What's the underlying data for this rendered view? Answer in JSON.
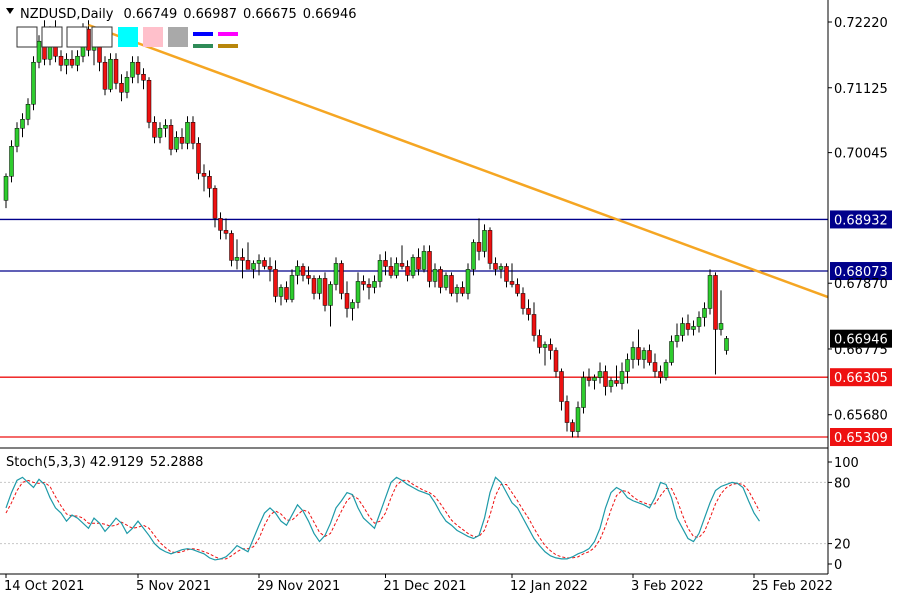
{
  "chart_data": [
    {
      "type": "candlestick",
      "symbol": "NZDUSD",
      "timeframe": "Daily",
      "ohlc_header": [
        "0.66749",
        "0.66987",
        "0.66675",
        "0.66946"
      ],
      "y_ticks": [
        "0.72220",
        "0.71125",
        "0.70045",
        "0.68932",
        "0.68073",
        "0.67870",
        "0.66946",
        "0.66775",
        "0.66305",
        "0.65680",
        "0.65309"
      ],
      "x_ticks": [
        "14 Oct 2021",
        "5 Nov 2021",
        "29 Nov 2021",
        "21 Dec 2021",
        "12 Jan 2022",
        "3 Feb 2022",
        "25 Feb 2022"
      ],
      "ylim": [
        0.652,
        0.724
      ],
      "up_color": "#2ecc2e",
      "down_color": "#ee1111",
      "levels": [
        {
          "value": 0.68932,
          "label": "0.68932",
          "color": "#00008b"
        },
        {
          "value": 0.68073,
          "label": "0.68073",
          "color": "#00008b"
        },
        {
          "value": 0.66305,
          "label": "0.66305",
          "color": "#ee1111"
        },
        {
          "value": 0.65309,
          "label": "0.65309",
          "color": "#ee1111"
        }
      ],
      "current_price": {
        "value": 0.66946,
        "label": "0.66946"
      },
      "trendline": {
        "color": "#f5a623",
        "points": [
          {
            "i": 15,
            "y": 0.7217
          },
          {
            "i": 142,
            "y": 0.6789
          }
        ]
      },
      "legend_swatches": [
        "#ffffff",
        "#ffffff",
        "#ffffff",
        "#ffffff",
        "#00ffff",
        "#ffc0cb",
        "#a9a9a9",
        "#0000ff",
        "#ff00ff",
        "#2e8b57",
        "#b8860b"
      ],
      "candles": [
        [
          0.6925,
          0.697,
          0.6912,
          0.6965
        ],
        [
          0.6965,
          0.7025,
          0.6955,
          0.7015
        ],
        [
          0.7015,
          0.7055,
          0.7005,
          0.7045
        ],
        [
          0.7045,
          0.707,
          0.703,
          0.706
        ],
        [
          0.706,
          0.7095,
          0.705,
          0.7085
        ],
        [
          0.7085,
          0.7165,
          0.7075,
          0.7155
        ],
        [
          0.7155,
          0.72,
          0.7145,
          0.719
        ],
        [
          0.719,
          0.7225,
          0.715,
          0.716
        ],
        [
          0.716,
          0.7215,
          0.715,
          0.7205
        ],
        [
          0.7205,
          0.7225,
          0.7155,
          0.7165
        ],
        [
          0.7165,
          0.7175,
          0.714,
          0.715
        ],
        [
          0.715,
          0.717,
          0.7135,
          0.716
        ],
        [
          0.716,
          0.7175,
          0.7145,
          0.715
        ],
        [
          0.715,
          0.7175,
          0.714,
          0.7165
        ],
        [
          0.7165,
          0.722,
          0.7155,
          0.721
        ],
        [
          0.721,
          0.7225,
          0.7165,
          0.7175
        ],
        [
          0.7175,
          0.7205,
          0.715,
          0.7195
        ],
        [
          0.7195,
          0.721,
          0.714,
          0.7155
        ],
        [
          0.7155,
          0.7165,
          0.71,
          0.711
        ],
        [
          0.711,
          0.717,
          0.7105,
          0.716
        ],
        [
          0.716,
          0.717,
          0.711,
          0.712
        ],
        [
          0.712,
          0.7135,
          0.709,
          0.7105
        ],
        [
          0.7105,
          0.714,
          0.7095,
          0.713
        ],
        [
          0.713,
          0.7165,
          0.712,
          0.7155
        ],
        [
          0.7155,
          0.7165,
          0.712,
          0.7135
        ],
        [
          0.7135,
          0.7145,
          0.711,
          0.7125
        ],
        [
          0.7125,
          0.713,
          0.7045,
          0.7055
        ],
        [
          0.7055,
          0.7065,
          0.702,
          0.703
        ],
        [
          0.703,
          0.7055,
          0.702,
          0.7045
        ],
        [
          0.7045,
          0.706,
          0.703,
          0.705
        ],
        [
          0.705,
          0.706,
          0.7,
          0.701
        ],
        [
          0.701,
          0.704,
          0.7005,
          0.703
        ],
        [
          0.703,
          0.7045,
          0.701,
          0.702
        ],
        [
          0.702,
          0.7065,
          0.701,
          0.7055
        ],
        [
          0.7055,
          0.7065,
          0.701,
          0.702
        ],
        [
          0.702,
          0.703,
          0.696,
          0.697
        ],
        [
          0.697,
          0.6985,
          0.694,
          0.6965
        ],
        [
          0.6965,
          0.6975,
          0.693,
          0.6945
        ],
        [
          0.6945,
          0.695,
          0.688,
          0.6895
        ],
        [
          0.6895,
          0.6905,
          0.686,
          0.6875
        ],
        [
          0.6875,
          0.6895,
          0.686,
          0.687
        ],
        [
          0.687,
          0.6875,
          0.6815,
          0.6825
        ],
        [
          0.6825,
          0.686,
          0.681,
          0.683
        ],
        [
          0.683,
          0.6845,
          0.6795,
          0.6825
        ],
        [
          0.6825,
          0.6855,
          0.6815,
          0.681
        ],
        [
          0.681,
          0.6825,
          0.6795,
          0.682
        ],
        [
          0.682,
          0.6835,
          0.68,
          0.6825
        ],
        [
          0.6825,
          0.683,
          0.681,
          0.6815
        ],
        [
          0.6815,
          0.683,
          0.679,
          0.681
        ],
        [
          0.681,
          0.6825,
          0.6755,
          0.6765
        ],
        [
          0.6765,
          0.6785,
          0.675,
          0.678
        ],
        [
          0.678,
          0.679,
          0.6755,
          0.676
        ],
        [
          0.676,
          0.681,
          0.6755,
          0.68
        ],
        [
          0.68,
          0.6825,
          0.6785,
          0.6815
        ],
        [
          0.6815,
          0.682,
          0.679,
          0.68
        ],
        [
          0.68,
          0.6815,
          0.6785,
          0.6795
        ],
        [
          0.6795,
          0.68,
          0.676,
          0.677
        ],
        [
          0.677,
          0.68,
          0.676,
          0.6795
        ],
        [
          0.6795,
          0.6805,
          0.674,
          0.675
        ],
        [
          0.675,
          0.679,
          0.6715,
          0.6785
        ],
        [
          0.6785,
          0.683,
          0.6775,
          0.682
        ],
        [
          0.682,
          0.6825,
          0.676,
          0.677
        ],
        [
          0.677,
          0.679,
          0.673,
          0.6745
        ],
        [
          0.6745,
          0.676,
          0.6725,
          0.6755
        ],
        [
          0.6755,
          0.6805,
          0.6745,
          0.679
        ],
        [
          0.679,
          0.68,
          0.6775,
          0.6785
        ],
        [
          0.6785,
          0.6795,
          0.676,
          0.678
        ],
        [
          0.678,
          0.68,
          0.677,
          0.679
        ],
        [
          0.679,
          0.6835,
          0.678,
          0.6825
        ],
        [
          0.6825,
          0.684,
          0.68,
          0.6815
        ],
        [
          0.6815,
          0.683,
          0.6795,
          0.68
        ],
        [
          0.68,
          0.683,
          0.6795,
          0.682
        ],
        [
          0.682,
          0.685,
          0.681,
          0.6815
        ],
        [
          0.6815,
          0.6825,
          0.679,
          0.68
        ],
        [
          0.68,
          0.6835,
          0.6795,
          0.683
        ],
        [
          0.683,
          0.6845,
          0.68,
          0.681
        ],
        [
          0.681,
          0.685,
          0.6805,
          0.684
        ],
        [
          0.684,
          0.685,
          0.678,
          0.679
        ],
        [
          0.679,
          0.682,
          0.678,
          0.681
        ],
        [
          0.681,
          0.6815,
          0.677,
          0.678
        ],
        [
          0.678,
          0.6805,
          0.6775,
          0.68
        ],
        [
          0.68,
          0.6805,
          0.6765,
          0.677
        ],
        [
          0.677,
          0.6785,
          0.6755,
          0.678
        ],
        [
          0.678,
          0.679,
          0.6765,
          0.677
        ],
        [
          0.677,
          0.682,
          0.676,
          0.681
        ],
        [
          0.681,
          0.686,
          0.68,
          0.6855
        ],
        [
          0.6855,
          0.6895,
          0.6825,
          0.684
        ],
        [
          0.684,
          0.6885,
          0.683,
          0.6875
        ],
        [
          0.6875,
          0.688,
          0.681,
          0.682
        ],
        [
          0.682,
          0.683,
          0.68,
          0.681
        ],
        [
          0.681,
          0.682,
          0.6795,
          0.6815
        ],
        [
          0.6815,
          0.682,
          0.678,
          0.679
        ],
        [
          0.679,
          0.682,
          0.678,
          0.6785
        ],
        [
          0.6785,
          0.6795,
          0.6765,
          0.677
        ],
        [
          0.677,
          0.678,
          0.6735,
          0.6745
        ],
        [
          0.6745,
          0.676,
          0.6725,
          0.6735
        ],
        [
          0.6735,
          0.6755,
          0.669,
          0.67
        ],
        [
          0.67,
          0.671,
          0.667,
          0.668
        ],
        [
          0.668,
          0.669,
          0.665,
          0.6685
        ],
        [
          0.6685,
          0.6695,
          0.666,
          0.6675
        ],
        [
          0.6675,
          0.668,
          0.663,
          0.664
        ],
        [
          0.664,
          0.6645,
          0.6575,
          0.659
        ],
        [
          0.659,
          0.66,
          0.654,
          0.6555
        ],
        [
          0.6555,
          0.656,
          0.653,
          0.654
        ],
        [
          0.654,
          0.659,
          0.653,
          0.658
        ],
        [
          0.658,
          0.664,
          0.657,
          0.663
        ],
        [
          0.663,
          0.6645,
          0.6615,
          0.6625
        ],
        [
          0.6625,
          0.6635,
          0.661,
          0.663
        ],
        [
          0.663,
          0.6655,
          0.662,
          0.664
        ],
        [
          0.664,
          0.665,
          0.66,
          0.6615
        ],
        [
          0.6615,
          0.663,
          0.6605,
          0.6625
        ],
        [
          0.6625,
          0.665,
          0.6615,
          0.662
        ],
        [
          0.662,
          0.6655,
          0.661,
          0.664
        ],
        [
          0.664,
          0.667,
          0.662,
          0.666
        ],
        [
          0.666,
          0.669,
          0.6645,
          0.668
        ],
        [
          0.668,
          0.671,
          0.665,
          0.666
        ],
        [
          0.666,
          0.668,
          0.6645,
          0.6675
        ],
        [
          0.6675,
          0.6685,
          0.665,
          0.6655
        ],
        [
          0.6655,
          0.667,
          0.663,
          0.664
        ],
        [
          0.664,
          0.665,
          0.662,
          0.663
        ],
        [
          0.663,
          0.666,
          0.6625,
          0.6655
        ],
        [
          0.6655,
          0.67,
          0.665,
          0.669
        ],
        [
          0.669,
          0.672,
          0.668,
          0.67
        ],
        [
          0.67,
          0.673,
          0.669,
          0.672
        ],
        [
          0.672,
          0.6735,
          0.67,
          0.671
        ],
        [
          0.671,
          0.6725,
          0.67,
          0.6715
        ],
        [
          0.6715,
          0.674,
          0.6705,
          0.673
        ],
        [
          0.673,
          0.6755,
          0.6715,
          0.6745
        ],
        [
          0.6745,
          0.681,
          0.6735,
          0.68
        ],
        [
          0.68,
          0.6805,
          0.6635,
          0.671
        ],
        [
          0.671,
          0.6775,
          0.67,
          0.672
        ],
        [
          0.6675,
          0.6699,
          0.6668,
          0.6695
        ]
      ],
      "stochastic": {
        "title": "Stoch(5,3,3)",
        "main_value": "42.9129",
        "signal_value": "52.2888",
        "ylim": [
          0,
          100
        ],
        "y_ticks": [
          "100",
          "80",
          "20",
          "0"
        ],
        "levels": [
          80,
          20
        ],
        "main_color": "#1e9aa8",
        "signal_color": "#ee1111",
        "main": [
          55,
          70,
          82,
          85,
          80,
          75,
          83,
          78,
          65,
          55,
          50,
          42,
          48,
          45,
          40,
          35,
          45,
          40,
          32,
          38,
          45,
          40,
          30,
          35,
          42,
          35,
          28,
          20,
          15,
          12,
          10,
          12,
          14,
          15,
          14,
          12,
          10,
          6,
          4,
          5,
          7,
          12,
          18,
          15,
          12,
          25,
          38,
          50,
          55,
          50,
          42,
          38,
          48,
          58,
          52,
          42,
          30,
          22,
          28,
          40,
          55,
          62,
          70,
          68,
          55,
          45,
          40,
          35,
          50,
          65,
          80,
          85,
          82,
          78,
          75,
          72,
          70,
          68,
          60,
          50,
          42,
          38,
          33,
          30,
          27,
          25,
          28,
          45,
          70,
          85,
          80,
          70,
          60,
          55,
          45,
          35,
          25,
          18,
          12,
          8,
          6,
          5,
          5,
          7,
          10,
          12,
          15,
          22,
          35,
          55,
          70,
          75,
          72,
          65,
          62,
          60,
          58,
          55,
          65,
          80,
          78,
          65,
          45,
          35,
          25,
          22,
          30,
          45,
          60,
          72,
          76,
          78,
          80,
          79,
          75,
          62,
          50,
          42
        ],
        "signal": [
          50,
          60,
          72,
          80,
          82,
          80,
          79,
          80,
          76,
          66,
          57,
          49,
          47,
          47,
          45,
          40,
          40,
          40,
          39,
          37,
          38,
          41,
          38,
          35,
          36,
          38,
          35,
          28,
          21,
          16,
          12,
          11,
          12,
          14,
          15,
          14,
          12,
          10,
          7,
          5,
          5,
          8,
          12,
          15,
          15,
          17,
          25,
          38,
          48,
          52,
          49,
          43,
          43,
          48,
          53,
          51,
          41,
          31,
          27,
          30,
          41,
          52,
          62,
          67,
          64,
          56,
          47,
          40,
          42,
          50,
          65,
          77,
          82,
          82,
          78,
          75,
          72,
          70,
          66,
          59,
          51,
          43,
          38,
          34,
          30,
          27,
          27,
          33,
          48,
          67,
          78,
          78,
          70,
          62,
          53,
          45,
          35,
          26,
          18,
          13,
          9,
          7,
          6,
          6,
          7,
          10,
          12,
          16,
          24,
          37,
          53,
          67,
          72,
          71,
          66,
          62,
          60,
          58,
          59,
          67,
          74,
          74,
          63,
          48,
          35,
          27,
          26,
          32,
          45,
          59,
          69,
          75,
          78,
          79,
          78,
          72,
          62,
          52
        ]
      }
    }
  ]
}
